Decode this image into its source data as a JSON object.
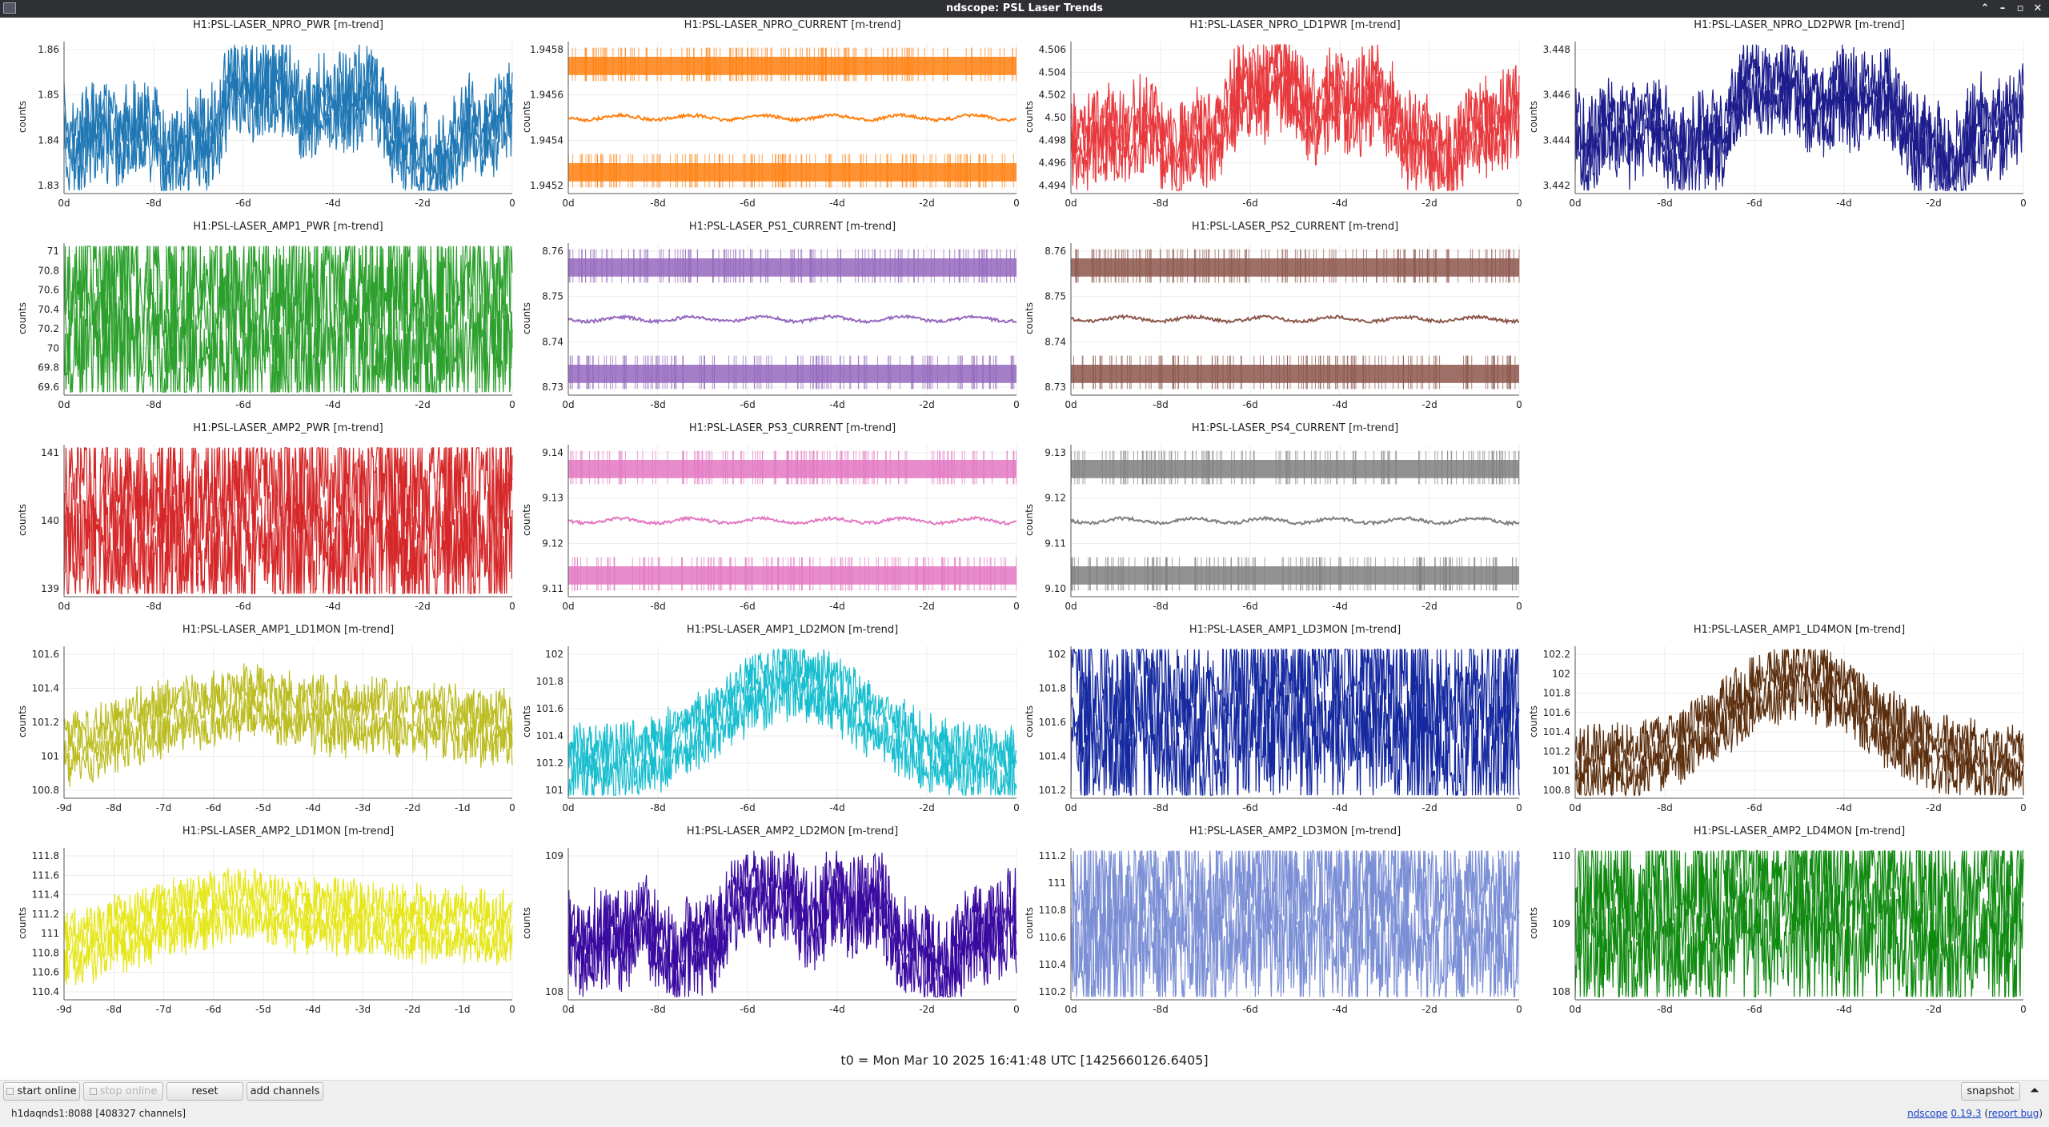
{
  "window": {
    "title": "ndscope: PSL Laser Trends",
    "buttons": [
      "⌃",
      "–",
      "▫",
      "✕"
    ]
  },
  "plots": [
    {
      "title": "H1:PSL-LASER_NPRO_PWR [m-trend]",
      "ylabel": "counts",
      "color": "#1f77b4",
      "yticks": [
        "1.86",
        "1.85",
        "1.84",
        "1.83"
      ],
      "xticks": [
        "0d",
        "-8d",
        "-6d",
        "-4d",
        "-2d",
        "0"
      ],
      "style": "wander"
    },
    {
      "title": "H1:PSL-LASER_NPRO_CURRENT [m-trend]",
      "ylabel": "counts",
      "color": "#ff7f0e",
      "yticks": [
        "1.9458",
        "1.9456",
        "1.9454",
        "1.9452"
      ],
      "xticks": [
        "0d",
        "-8d",
        "-6d",
        "-4d",
        "-2d",
        "0"
      ],
      "style": "bands"
    },
    {
      "title": "H1:PSL-LASER_NPRO_LD1PWR [m-trend]",
      "ylabel": "counts",
      "color": "#e8393d",
      "yticks": [
        "4.506",
        "4.504",
        "4.502",
        "4.50",
        "4.498",
        "4.496",
        "4.494"
      ],
      "xticks": [
        "0d",
        "-8d",
        "-6d",
        "-4d",
        "-2d",
        "0"
      ],
      "style": "wander"
    },
    {
      "title": "H1:PSL-LASER_NPRO_LD2PWR [m-trend]",
      "ylabel": "counts",
      "color": "#1c1c8c",
      "yticks": [
        "3.448",
        "3.446",
        "3.444",
        "3.442"
      ],
      "xticks": [
        "0d",
        "-8d",
        "-6d",
        "-4d",
        "-2d",
        "0"
      ],
      "style": "wander"
    },
    {
      "title": "H1:PSL-LASER_AMP1_PWR [m-trend]",
      "ylabel": "counts",
      "color": "#2ca02c",
      "yticks": [
        "71",
        "70.8",
        "70.6",
        "70.4",
        "70.2",
        "70",
        "69.8",
        "69.6"
      ],
      "xticks": [
        "0d",
        "-8d",
        "-6d",
        "-4d",
        "-2d",
        "0"
      ],
      "style": "dense"
    },
    {
      "title": "H1:PSL-LASER_PS1_CURRENT [m-trend]",
      "ylabel": "counts",
      "color": "#9467bd",
      "yticks": [
        "8.76",
        "8.75",
        "8.74",
        "8.73"
      ],
      "xticks": [
        "0d",
        "-8d",
        "-6d",
        "-4d",
        "-2d",
        "0"
      ],
      "style": "bands"
    },
    {
      "title": "H1:PSL-LASER_PS2_CURRENT [m-trend]",
      "ylabel": "counts",
      "color": "#8c564b",
      "yticks": [
        "8.76",
        "8.75",
        "8.74",
        "8.73"
      ],
      "xticks": [
        "0d",
        "-8d",
        "-6d",
        "-4d",
        "-2d",
        "0"
      ],
      "style": "bands"
    },
    {
      "title": "H1:PSL-LASER_AMP2_PWR [m-trend]",
      "ylabel": "counts",
      "color": "#d62728",
      "yticks": [
        "141",
        "140",
        "139"
      ],
      "xticks": [
        "0d",
        "-8d",
        "-6d",
        "-4d",
        "-2d",
        "0"
      ],
      "style": "dense"
    },
    {
      "title": "H1:PSL-LASER_PS3_CURRENT [m-trend]",
      "ylabel": "counts",
      "color": "#e377c2",
      "yticks": [
        "9.14",
        "9.13",
        "9.12",
        "9.11"
      ],
      "xticks": [
        "0d",
        "-8d",
        "-6d",
        "-4d",
        "-2d",
        "0"
      ],
      "style": "bands"
    },
    {
      "title": "H1:PSL-LASER_PS4_CURRENT [m-trend]",
      "ylabel": "counts",
      "color": "#7f7f7f",
      "yticks": [
        "9.13",
        "9.12",
        "9.11",
        "9.10"
      ],
      "xticks": [
        "0d",
        "-8d",
        "-6d",
        "-4d",
        "-2d",
        "0"
      ],
      "style": "bands"
    },
    {
      "title": "H1:PSL-LASER_AMP1_LD1MON [m-trend]",
      "ylabel": "counts",
      "color": "#bcbd22",
      "yticks": [
        "101.6",
        "101.4",
        "101.2",
        "101",
        "100.8"
      ],
      "xticks": [
        "-9d",
        "-8d",
        "-7d",
        "-6d",
        "-5d",
        "-4d",
        "-3d",
        "-2d",
        "-1d",
        "0"
      ],
      "style": "rise"
    },
    {
      "title": "H1:PSL-LASER_AMP1_LD2MON [m-trend]",
      "ylabel": "counts",
      "color": "#17becf",
      "yticks": [
        "102",
        "101.8",
        "101.6",
        "101.4",
        "101.2",
        "101"
      ],
      "xticks": [
        "0d",
        "-8d",
        "-6d",
        "-4d",
        "-2d",
        "0"
      ],
      "style": "hump"
    },
    {
      "title": "H1:PSL-LASER_AMP1_LD3MON [m-trend]",
      "ylabel": "counts",
      "color": "#1428a0",
      "yticks": [
        "102",
        "101.8",
        "101.6",
        "101.4",
        "101.2"
      ],
      "xticks": [
        "0d",
        "-8d",
        "-6d",
        "-4d",
        "-2d",
        "0"
      ],
      "style": "flat"
    },
    {
      "title": "H1:PSL-LASER_AMP1_LD4MON [m-trend]",
      "ylabel": "counts",
      "color": "#5a2d0c",
      "yticks": [
        "102.2",
        "102",
        "101.8",
        "101.6",
        "101.4",
        "101.2",
        "101",
        "100.8"
      ],
      "xticks": [
        "0d",
        "-8d",
        "-6d",
        "-4d",
        "-2d",
        "0"
      ],
      "style": "hump"
    },
    {
      "title": "H1:PSL-LASER_AMP2_LD1MON [m-trend]",
      "ylabel": "counts",
      "color": "#e6e619",
      "yticks": [
        "111.8",
        "111.6",
        "111.4",
        "111.2",
        "111",
        "110.8",
        "110.6",
        "110.4"
      ],
      "xticks": [
        "-9d",
        "-8d",
        "-7d",
        "-6d",
        "-5d",
        "-4d",
        "-3d",
        "-2d",
        "-1d",
        "0"
      ],
      "style": "rise"
    },
    {
      "title": "H1:PSL-LASER_AMP2_LD2MON [m-trend]",
      "ylabel": "counts",
      "color": "#3b0aa0",
      "yticks": [
        "109",
        "108"
      ],
      "xticks": [
        "0d",
        "-8d",
        "-6d",
        "-4d",
        "-2d",
        "0"
      ],
      "style": "wander"
    },
    {
      "title": "H1:PSL-LASER_AMP2_LD3MON [m-trend]",
      "ylabel": "counts",
      "color": "#7b8fd6",
      "yticks": [
        "111.2",
        "111",
        "110.8",
        "110.6",
        "110.4",
        "110.2"
      ],
      "xticks": [
        "0d",
        "-8d",
        "-6d",
        "-4d",
        "-2d",
        "0"
      ],
      "style": "flat"
    },
    {
      "title": "H1:PSL-LASER_AMP2_LD4MON [m-trend]",
      "ylabel": "counts",
      "color": "#0f8a0f",
      "yticks": [
        "110",
        "109",
        "108"
      ],
      "xticks": [
        "0d",
        "-8d",
        "-6d",
        "-4d",
        "-2d",
        "0"
      ],
      "style": "flat"
    }
  ],
  "t0_label": "t0 = Mon Mar 10 2025 16:41:48 UTC [1425660126.6405]",
  "toolbar": {
    "start_online": "start online",
    "stop_online": "stop online",
    "reset": "reset",
    "add_channels": "add channels",
    "snapshot": "snapshot",
    "collapse": "⏶"
  },
  "status": {
    "server": "h1daqnds1:8088  [408327 channels]",
    "app_link": "ndscope",
    "version_link": "0.19.3",
    "report_open": " (",
    "report_link": "report bug",
    "report_close": ")"
  }
}
